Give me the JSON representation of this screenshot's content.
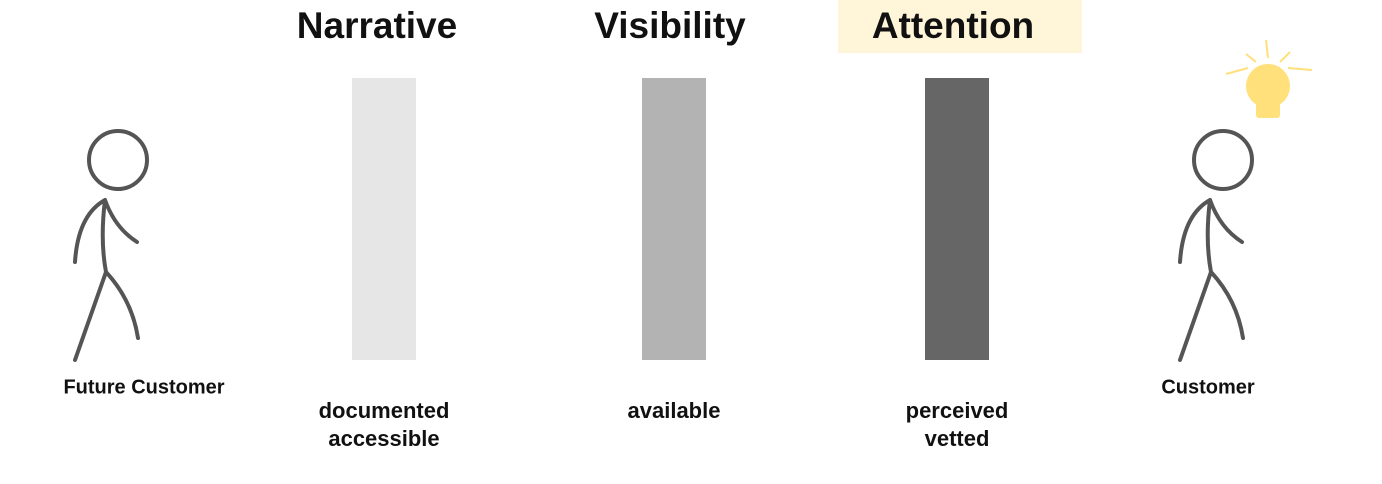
{
  "left_figure": {
    "label": "Future Customer"
  },
  "stages": [
    {
      "title": "Narrative",
      "description": [
        "documented",
        "accessible"
      ]
    },
    {
      "title": "Visibility",
      "description": [
        "available"
      ]
    },
    {
      "title": "Attention",
      "description": [
        "perceived",
        "vetted"
      ]
    }
  ],
  "right_figure": {
    "label": "Customer"
  }
}
